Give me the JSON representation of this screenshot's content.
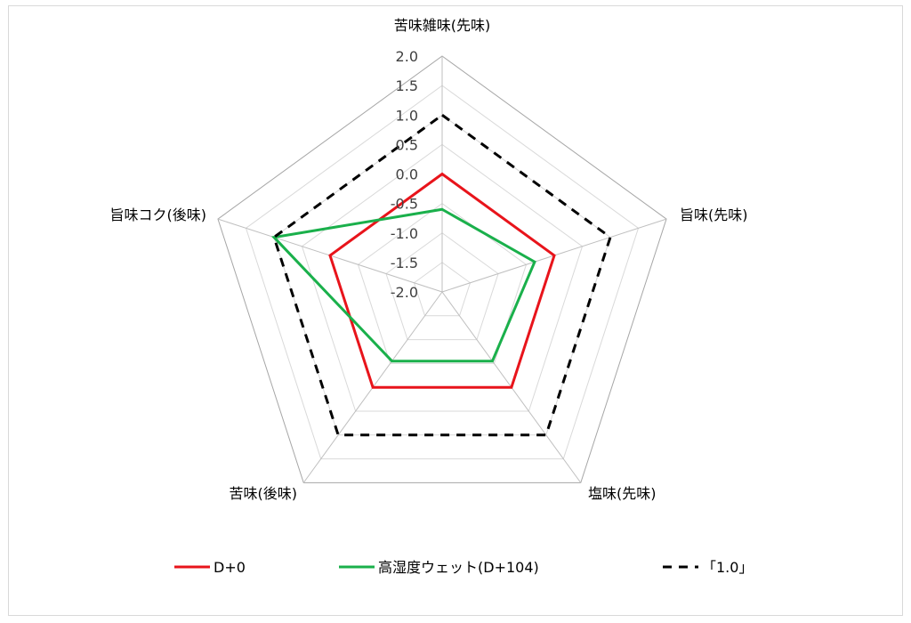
{
  "chart_data": {
    "type": "radar",
    "categories": [
      "苦味雑味(先味)",
      "旨味(先味)",
      "塩味(先味)",
      "苦味(後味)",
      "旨味コク(後味)"
    ],
    "r_ticks": [
      "2.0",
      "1.5",
      "1.0",
      "0.5",
      "0.0",
      "-0.5",
      "-1.0",
      "-1.5",
      "-2.0"
    ],
    "r_range": [
      -2.0,
      2.0
    ],
    "series": [
      {
        "name": "D+0",
        "color": "#e8141b",
        "dash": "solid",
        "values": [
          0.0,
          0.0,
          0.0,
          0.0,
          0.0
        ]
      },
      {
        "name": "高湿度ウェット(D+104)",
        "color": "#1ab04b",
        "dash": "solid",
        "values": [
          -0.6,
          -0.35,
          -0.55,
          -0.55,
          1.0
        ]
      },
      {
        "name": "「1.0」",
        "color": "#000000",
        "dash": "dashed",
        "values": [
          1.0,
          1.0,
          1.0,
          1.0,
          1.0
        ]
      }
    ],
    "legend_position": "bottom"
  }
}
